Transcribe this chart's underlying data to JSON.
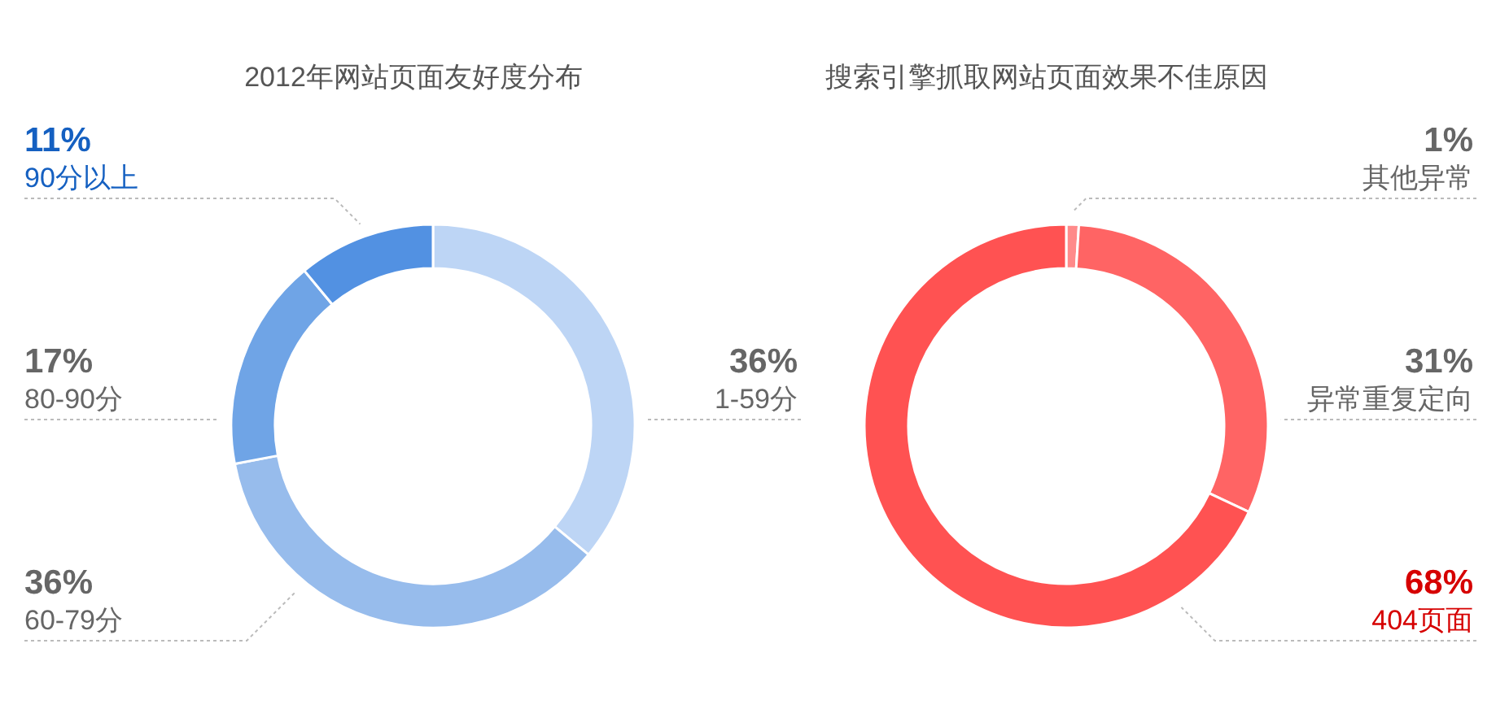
{
  "chart_data": [
    {
      "type": "donut",
      "title": "2012年网站页面友好度分布",
      "categories": [
        "1-59分",
        "60-79分",
        "80-90分",
        "90分以上"
      ],
      "values": [
        36,
        36,
        17,
        11
      ],
      "colors": [
        "#bdd5f5",
        "#97bcec",
        "#6fa4e6",
        "#5291e2"
      ],
      "value_labels": [
        "36%",
        "36%",
        "17%",
        "11%"
      ]
    },
    {
      "type": "donut",
      "title": "搜索引擎抓取网站页面效果不佳原因",
      "categories": [
        "其他异常",
        "异常重复定向",
        "404页面"
      ],
      "values": [
        1,
        31,
        68
      ],
      "colors": [
        "#ff8a8a",
        "#ff6464",
        "#ff5252"
      ],
      "value_labels": [
        "1%",
        "31%",
        "68%"
      ]
    }
  ]
}
